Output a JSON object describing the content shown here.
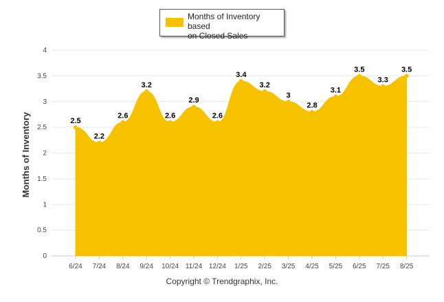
{
  "chart_data": {
    "type": "area",
    "categories": [
      "6/24",
      "7/24",
      "8/24",
      "9/24",
      "10/24",
      "11/24",
      "12/24",
      "1/25",
      "2/25",
      "3/25",
      "4/25",
      "5/25",
      "6/25",
      "7/25",
      "8/25"
    ],
    "series": [
      {
        "name": "Months of Inventory based on Closed Sales",
        "values": [
          2.5,
          2.2,
          2.6,
          3.2,
          2.6,
          2.9,
          2.6,
          3.4,
          3.2,
          3.0,
          2.8,
          3.1,
          3.5,
          3.3,
          3.5
        ],
        "color": "#f6c200"
      }
    ],
    "data_labels": [
      "2.5",
      "2.2",
      "2.6",
      "3.2",
      "2.6",
      "2.9",
      "2.6",
      "3.4",
      "3.2",
      "3",
      "2.8",
      "3.1",
      "3.5",
      "3.3",
      "3.5"
    ],
    "ylabel": "Months of Inventory",
    "xlabel": "",
    "ylim": [
      0,
      4
    ],
    "yticks": [
      "0",
      "0.5",
      "1",
      "1.5",
      "2",
      "2.5",
      "3",
      "3.5",
      "4"
    ],
    "grid": true,
    "legend_position": "top-center"
  },
  "legend": {
    "label_line1": "Months of Inventory based",
    "label_line2": "on Closed Sales"
  },
  "copyright": "Copyright © Trendgraphix, Inc.",
  "colors": {
    "series": "#f6c200",
    "grid": "#e6e6e6",
    "text": "#333333"
  }
}
